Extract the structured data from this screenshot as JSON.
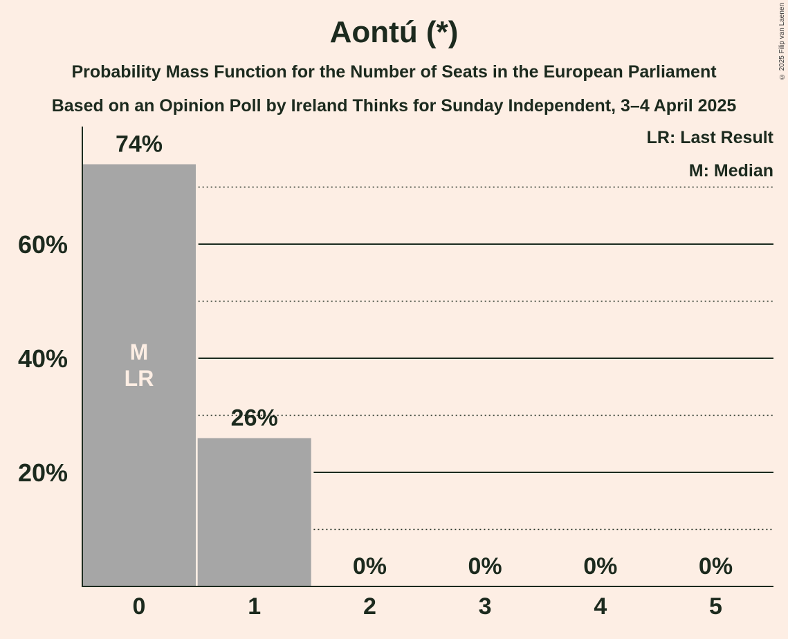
{
  "header": {
    "title": "Aontú (*)",
    "subtitle": "Probability Mass Function for the Number of Seats in the European Parliament",
    "source": "Based on an Opinion Poll by Ireland Thinks for Sunday Independent, 3–4 April 2025",
    "copyright": "© 2025 Filip van Laenen"
  },
  "legend": {
    "last_result": "LR: Last Result",
    "median": "M: Median"
  },
  "colors": {
    "background": "#fdeee4",
    "bar": "#a6a6a6",
    "text": "#1c2a1e",
    "bar_label": "#fdeee4"
  },
  "chart_data": {
    "type": "bar",
    "categories": [
      "0",
      "1",
      "2",
      "3",
      "4",
      "5"
    ],
    "values": [
      74,
      26,
      0,
      0,
      0,
      0
    ],
    "value_labels": [
      "74%",
      "26%",
      "0%",
      "0%",
      "0%",
      "0%"
    ],
    "ylim": [
      0,
      80
    ],
    "yticks": [
      20,
      40,
      60
    ],
    "ytick_labels": [
      "20%",
      "40%",
      "60%"
    ],
    "minor_gridlines": [
      10,
      30,
      50,
      70
    ],
    "bar_annotations": [
      {
        "category": "0",
        "lines": [
          "M",
          "LR"
        ]
      }
    ],
    "grid": true,
    "legend_position": "top-right"
  }
}
